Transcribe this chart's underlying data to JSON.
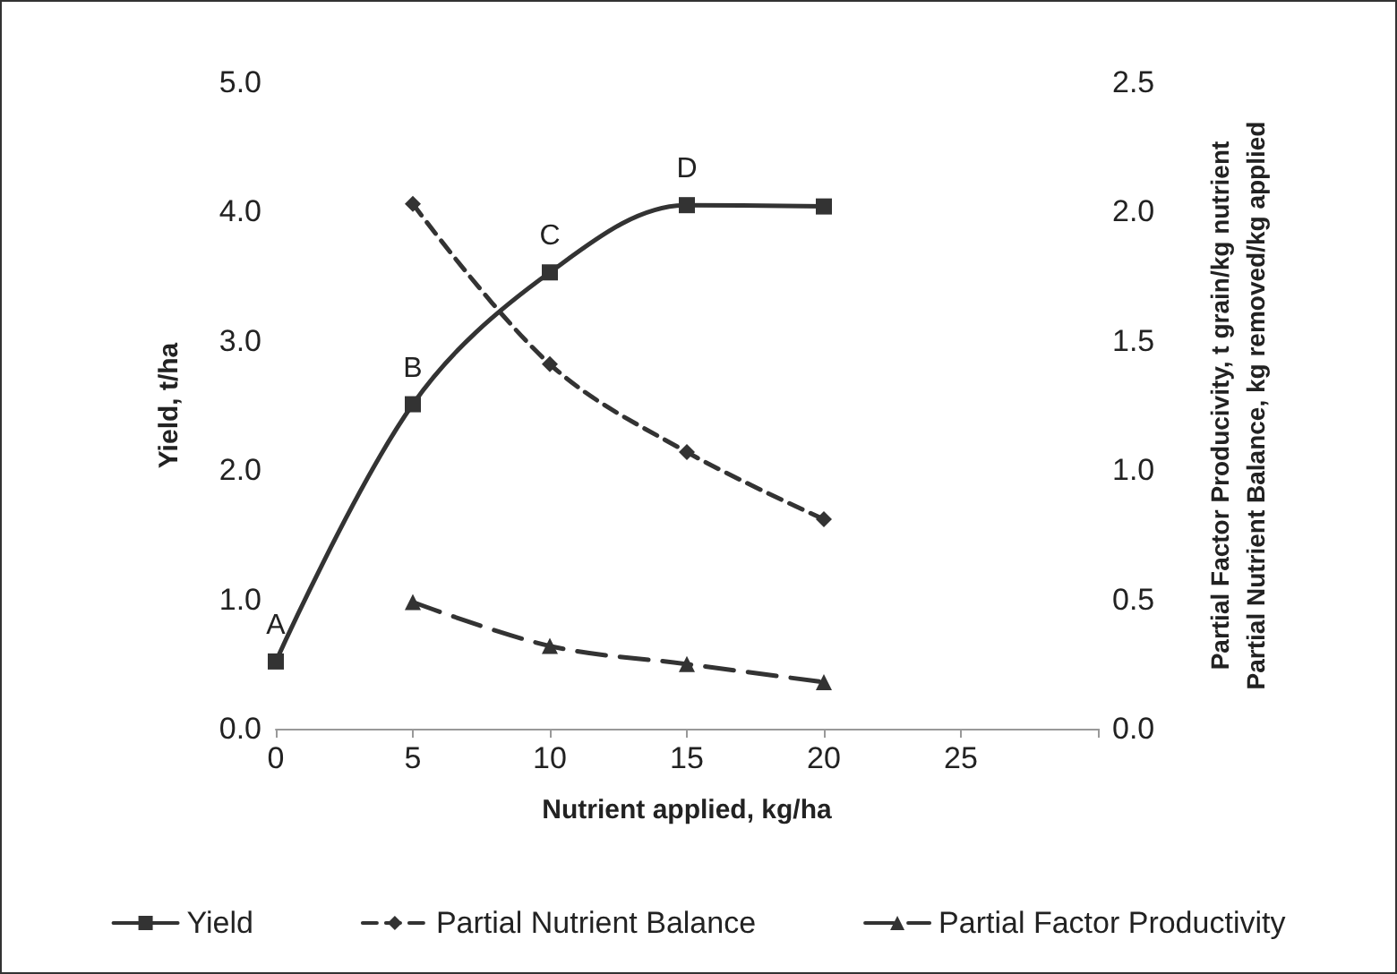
{
  "chart_data": {
    "type": "line",
    "xlabel": "Nutrient applied, kg/ha",
    "ylabel": "Yield, t/ha",
    "y2label": "Partial Factor Producivity, t grain/kg nutrient\nPartial Nutrient Balance, kg removed/kg applied",
    "x": [
      0,
      5,
      10,
      15,
      20
    ],
    "series": [
      {
        "name": "Yield",
        "color": "#333333",
        "marker": "square",
        "line_style": "solid",
        "values": [
          0.52,
          2.51,
          3.53,
          4.05,
          4.04
        ]
      },
      {
        "name": "Partial Nutrient Balance",
        "color": "#333333",
        "marker": "diamond",
        "line_style": "dashed",
        "axis": "y2",
        "values": [
          null,
          2.03,
          1.41,
          1.07,
          0.81
        ]
      },
      {
        "name": "Partial Factor Productivity",
        "color": "#333333",
        "marker": "triangle",
        "line_style": "dashed",
        "axis": "y2",
        "values": [
          null,
          0.49,
          0.32,
          0.25,
          0.18
        ]
      }
    ],
    "annotations": [
      {
        "text": "A",
        "x": 0,
        "y": 0.52
      },
      {
        "text": "B",
        "x": 5,
        "y": 2.51
      },
      {
        "text": "C",
        "x": 10,
        "y": 3.53
      },
      {
        "text": "D",
        "x": 15,
        "y": 4.05
      }
    ],
    "xlim": [
      0,
      30
    ],
    "xticks": [
      0,
      5,
      10,
      15,
      20,
      25,
      {
        "value": 30,
        "label": null
      }
    ],
    "ylim": [
      0,
      5
    ],
    "yticks": [
      {
        "value": 0,
        "label": "0.0"
      },
      {
        "value": 1,
        "label": "1.0"
      },
      {
        "value": 2,
        "label": "2.0"
      },
      {
        "value": 3,
        "label": "3.0"
      },
      {
        "value": 4,
        "label": "4.0"
      },
      {
        "value": 5,
        "label": "5.0"
      }
    ],
    "y2lim": [
      0,
      2.5
    ],
    "y2ticks": [
      {
        "value": 0,
        "label": "0.0"
      },
      {
        "value": 0.5,
        "label": "0.5"
      },
      {
        "value": 1,
        "label": "1.0"
      },
      {
        "value": 1.5,
        "label": "1.5"
      },
      {
        "value": 2,
        "label": "2.0"
      },
      {
        "value": 2.5,
        "label": "2.5"
      }
    ],
    "grid": false,
    "legend": "bottom"
  }
}
